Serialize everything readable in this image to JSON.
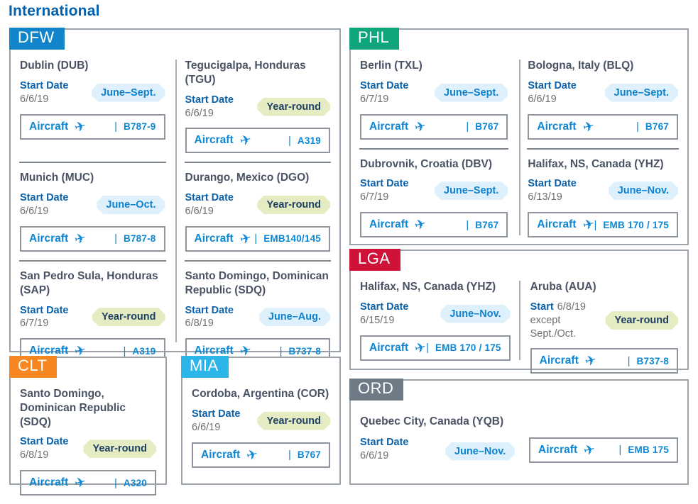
{
  "page_title": "International",
  "icons": {
    "airplane": "✈",
    "separator": "|"
  },
  "colors": {
    "title_blue": "#0060ae",
    "heading_slate": "#4a5365",
    "link_blue": "#0d86d3",
    "start_label_blue": "#0a61a9",
    "date_gray": "#6d6f71",
    "badge_seasonal_bg": "#ddf0fb",
    "badge_seasonal_text": "#0d82d0",
    "badge_year_round_bg": "#e6ecc2",
    "badge_year_round_text": "#1d3f66",
    "box_border_gray": "#9ba2aa"
  },
  "sections": [
    {
      "id": "dfw",
      "code": "DFW",
      "tab_color": "#1285ca",
      "layout": "grid-2",
      "cards": [
        {
          "destination": "Dublin (DUB)",
          "start_label": "Start Date",
          "start_date": "6/6/19",
          "badge": "June–Sept.",
          "badge_type": "seasonal",
          "aircraft_label": "Aircraft",
          "aircraft_code": "B787-9"
        },
        {
          "destination": "Tegucigalpa, Honduras (TGU)",
          "start_label": "Start Date",
          "start_date": "6/6/19",
          "badge": "Year-round",
          "badge_type": "year_round",
          "aircraft_label": "Aircraft",
          "aircraft_code": "A319"
        },
        {
          "destination": "Munich (MUC)",
          "start_label": "Start Date",
          "start_date": "6/6/19",
          "badge": "June–Oct.",
          "badge_type": "seasonal",
          "aircraft_label": "Aircraft",
          "aircraft_code": "B787-8"
        },
        {
          "destination": "Durango, Mexico (DGO)",
          "start_label": "Start Date",
          "start_date": "6/6/19",
          "badge": "Year-round",
          "badge_type": "year_round",
          "aircraft_label": "Aircraft",
          "aircraft_code": "EMB140/145"
        },
        {
          "destination": "San Pedro Sula, Honduras (SAP)",
          "start_label": "Start Date",
          "start_date": "6/7/19",
          "badge": "Year-round",
          "badge_type": "year_round",
          "aircraft_label": "Aircraft",
          "aircraft_code": "A319"
        },
        {
          "destination": "Santo Domingo, Dominican Republic (SDQ)",
          "start_label": "Start Date",
          "start_date": "6/8/19",
          "badge": "June–Aug.",
          "badge_type": "seasonal",
          "aircraft_label": "Aircraft",
          "aircraft_code": "B737-8"
        }
      ]
    },
    {
      "id": "phl",
      "code": "PHL",
      "tab_color": "#0fa57d",
      "layout": "grid-2",
      "cards": [
        {
          "destination": "Berlin (TXL)",
          "start_label": "Start Date",
          "start_date": "6/7/19",
          "badge": "June–Sept.",
          "badge_type": "seasonal",
          "aircraft_label": "Aircraft",
          "aircraft_code": "B767"
        },
        {
          "destination": "Bologna, Italy (BLQ)",
          "start_label": "Start Date",
          "start_date": "6/6/19",
          "badge": "June–Sept.",
          "badge_type": "seasonal",
          "aircraft_label": "Aircraft",
          "aircraft_code": "B767"
        },
        {
          "destination": "Dubrovnik, Croatia (DBV)",
          "start_label": "Start Date",
          "start_date": "6/7/19",
          "badge": "June–Sept.",
          "badge_type": "seasonal",
          "aircraft_label": "Aircraft",
          "aircraft_code": "B767"
        },
        {
          "destination": "Halifax, NS, Canada (YHZ)",
          "start_label": "Start Date",
          "start_date": "6/13/19",
          "badge": "June–Nov.",
          "badge_type": "seasonal",
          "aircraft_label": "Aircraft",
          "aircraft_code": "EMB 170 / 175"
        }
      ]
    },
    {
      "id": "lga",
      "code": "LGA",
      "tab_color": "#ce1238",
      "layout": "grid-2",
      "cards": [
        {
          "destination": "Halifax, NS, Canada (YHZ)",
          "start_label": "Start Date",
          "start_date": "6/15/19",
          "badge": "June–Nov.",
          "badge_type": "seasonal",
          "aircraft_label": "Aircraft",
          "aircraft_code": "EMB 170 / 175"
        },
        {
          "destination": "Aruba (AUA)",
          "start_label": "Start",
          "start_date": "6/8/19",
          "start_inline": true,
          "start_note": "except Sept./Oct.",
          "badge": "Year-round",
          "badge_type": "year_round",
          "aircraft_label": "Aircraft",
          "aircraft_code": "B737-8"
        }
      ]
    },
    {
      "id": "clt",
      "code": "CLT",
      "tab_color": "#f6861f",
      "layout": "grid-1",
      "cards": [
        {
          "destination": "Santo Domingo, Dominican Republic (SDQ)",
          "start_label": "Start Date",
          "start_date": "6/8/19",
          "badge": "Year-round",
          "badge_type": "year_round",
          "aircraft_label": "Aircraft",
          "aircraft_code": "A320"
        }
      ]
    },
    {
      "id": "mia",
      "code": "MIA",
      "tab_color": "#2cb5e9",
      "layout": "grid-1",
      "cards": [
        {
          "destination": "Cordoba, Argentina (COR)",
          "start_label": "Start Date",
          "start_date": "6/6/19",
          "badge": "Year-round",
          "badge_type": "year_round",
          "aircraft_label": "Aircraft",
          "aircraft_code": "B767"
        }
      ]
    },
    {
      "id": "ord",
      "code": "ORD",
      "tab_color": "#6f7a87",
      "layout": "row",
      "cards": [
        {
          "destination": "Quebec City, Canada (YQB)",
          "start_label": "Start Date",
          "start_date": "6/6/19",
          "badge": "June–Nov.",
          "badge_type": "seasonal",
          "aircraft_label": "Aircraft",
          "aircraft_code": "EMB 175"
        }
      ]
    }
  ]
}
